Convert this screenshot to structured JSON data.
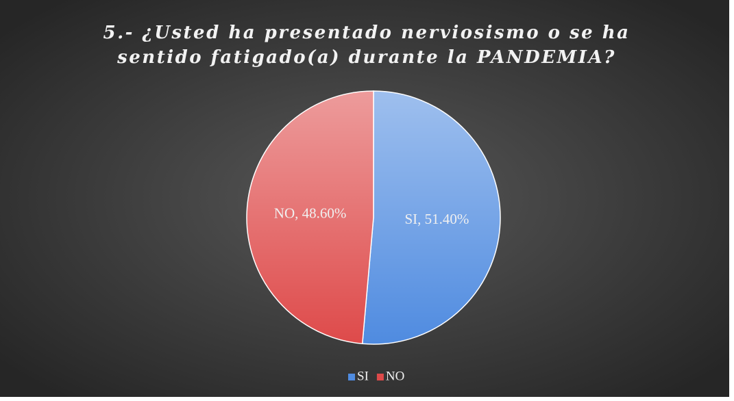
{
  "chart_data": {
    "type": "pie",
    "title": "5.- ¿Usted ha presentado nerviosismo o se ha sentido fatigado(a) durante la PANDEMIA?",
    "categories": [
      "SI",
      "NO"
    ],
    "values": [
      51.4,
      48.6
    ],
    "value_labels": [
      "SI, 51.40%",
      "NO, 48.60%"
    ],
    "colors": [
      "#4f8be0",
      "#de4a4a"
    ],
    "legend": "bottom"
  }
}
